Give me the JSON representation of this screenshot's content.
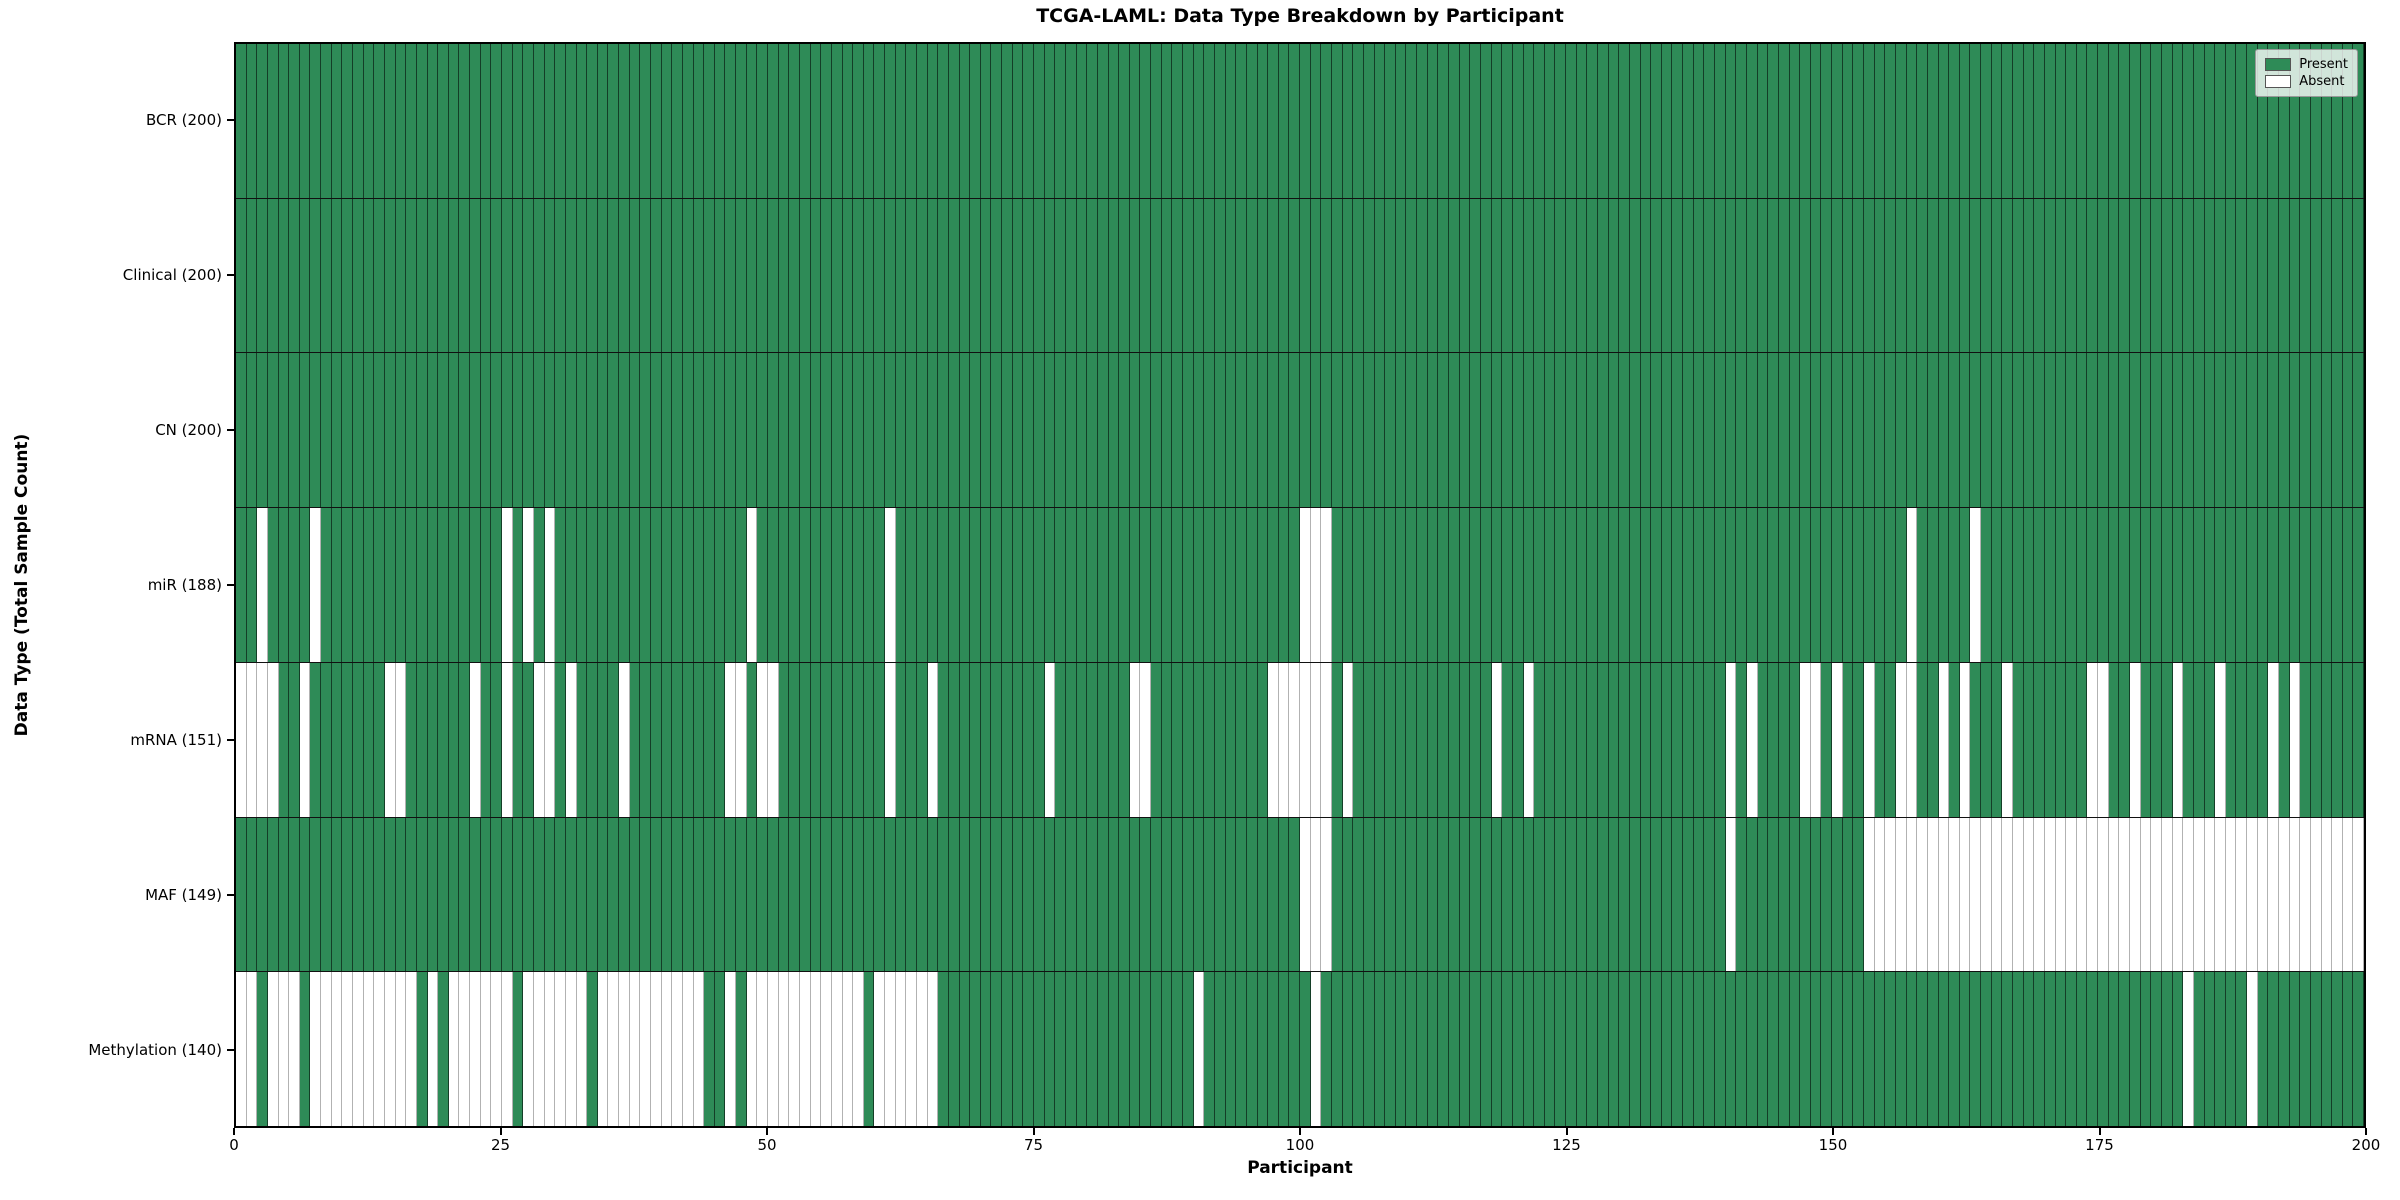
{
  "chart_data": {
    "type": "heatmap",
    "title": "TCGA-LAML: Data Type Breakdown by Participant",
    "xlabel": "Participant",
    "ylabel": "Data Type (Total Sample Count)",
    "n_participants": 200,
    "x_axis": {
      "min": 0,
      "max": 200,
      "ticks": [
        0,
        25,
        50,
        75,
        100,
        125,
        150,
        175,
        200
      ]
    },
    "grid": "cell-borders",
    "legend_position": "upper-right",
    "legend": [
      {
        "label": "Present",
        "color": "#2e8b57"
      },
      {
        "label": "Absent",
        "color": "#ffffff"
      }
    ],
    "colors": {
      "present": "#2e8b57",
      "absent": "#ffffff",
      "cell_edge": "#1a1a1a",
      "row_divider": "#111111"
    },
    "rows": [
      {
        "label": "BCR (200)",
        "data_type": "BCR",
        "present_count": 200,
        "absent_participants": []
      },
      {
        "label": "Clinical (200)",
        "data_type": "Clinical",
        "present_count": 200,
        "absent_participants": []
      },
      {
        "label": "CN (200)",
        "data_type": "CN",
        "present_count": 200,
        "absent_participants": []
      },
      {
        "label": "miR (188)",
        "data_type": "miR",
        "present_count": 188,
        "absent_participants": [
          2,
          7,
          25,
          27,
          29,
          48,
          61,
          100,
          101,
          102,
          157,
          163
        ]
      },
      {
        "label": "mRNA (151)",
        "data_type": "mRNA",
        "present_count": 151,
        "absent_participants": [
          0,
          1,
          2,
          3,
          6,
          14,
          15,
          22,
          25,
          28,
          29,
          31,
          36,
          46,
          47,
          49,
          50,
          61,
          65,
          76,
          84,
          85,
          97,
          98,
          99,
          100,
          101,
          102,
          104,
          118,
          121,
          140,
          142,
          147,
          148,
          150,
          153,
          156,
          157,
          160,
          162,
          166,
          174,
          175,
          178,
          182,
          186,
          191,
          193
        ]
      },
      {
        "label": "MAF (149)",
        "data_type": "MAF",
        "present_count": 149,
        "absent_participants": [
          100,
          101,
          102,
          140,
          153,
          154,
          155,
          156,
          157,
          158,
          159,
          160,
          161,
          162,
          163,
          164,
          165,
          166,
          167,
          168,
          169,
          170,
          171,
          172,
          173,
          174,
          175,
          176,
          177,
          178,
          179,
          180,
          181,
          182,
          183,
          184,
          185,
          186,
          187,
          188,
          189,
          190,
          191,
          192,
          193,
          194,
          195,
          196,
          197,
          198,
          199
        ]
      },
      {
        "label": "Methylation (140)",
        "data_type": "Methylation",
        "present_count": 140,
        "absent_participants": [
          0,
          1,
          3,
          4,
          5,
          7,
          8,
          9,
          10,
          11,
          12,
          13,
          14,
          15,
          16,
          18,
          20,
          21,
          22,
          23,
          24,
          25,
          27,
          28,
          29,
          30,
          31,
          32,
          34,
          35,
          36,
          37,
          38,
          39,
          40,
          41,
          42,
          43,
          46,
          48,
          49,
          50,
          51,
          52,
          53,
          54,
          55,
          56,
          57,
          58,
          60,
          61,
          62,
          63,
          64,
          65,
          90,
          101,
          183,
          189
        ]
      }
    ]
  }
}
